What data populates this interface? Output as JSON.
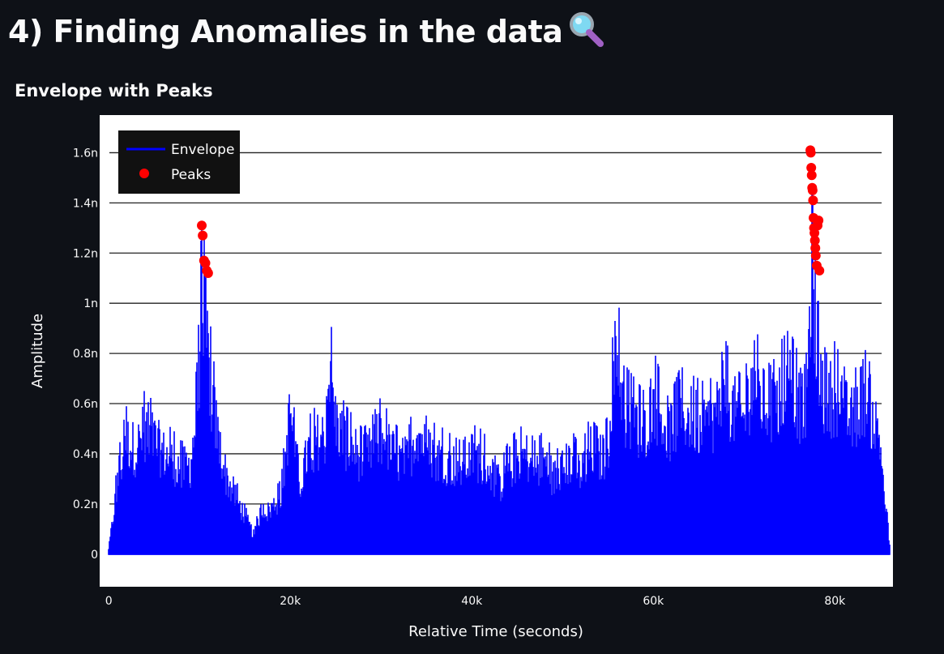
{
  "page": {
    "title": "4) Finding Anomalies in the data",
    "title_icon": "magnifying-glass-icon"
  },
  "chart_data": {
    "type": "line",
    "title": "Envelope with Peaks",
    "xlabel": "Relative Time (seconds)",
    "ylabel": "Amplitude",
    "xlim": [
      -1000,
      86400
    ],
    "ylim": [
      -1.3e-10,
      1.75e-09
    ],
    "x_ticks": [
      0,
      20000,
      40000,
      60000,
      80000
    ],
    "x_tick_labels": [
      "0",
      "20k",
      "40k",
      "60k",
      "80k"
    ],
    "y_ticks": [
      0,
      2e-10,
      4e-10,
      6e-10,
      8e-10,
      1e-09,
      1.2e-09,
      1.4e-09,
      1.6e-09
    ],
    "y_tick_labels": [
      "0",
      "0.2n",
      "0.4n",
      "0.6n",
      "0.8n",
      "1n",
      "1.2n",
      "1.4n",
      "1.6n"
    ],
    "grid": "horizontal",
    "legend_position": "top-left",
    "colors": {
      "envelope": "#0000ff",
      "peaks": "#ff0000",
      "plot_bg": "#ffffff",
      "page_bg": "#0e1117",
      "legend_bg": "#111111"
    },
    "series": [
      {
        "name": "Envelope",
        "kind": "line",
        "note": "approximate upper envelope (max amplitude) read from the plot; signal densely oscillates between 0 and this upper bound",
        "x": [
          0,
          500,
          1000,
          1500,
          2000,
          3000,
          4000,
          5000,
          6000,
          7000,
          8000,
          9000,
          9800,
          10200,
          10500,
          11000,
          11500,
          12000,
          13000,
          14000,
          15000,
          16000,
          17000,
          17500,
          18000,
          19000,
          20000,
          21000,
          22000,
          23000,
          24000,
          24500,
          25000,
          26000,
          27000,
          28000,
          29000,
          30000,
          31000,
          32000,
          33000,
          34000,
          35000,
          36000,
          37000,
          38000,
          39000,
          40000,
          41000,
          42000,
          43000,
          44000,
          45000,
          46000,
          47000,
          48000,
          49000,
          50000,
          51000,
          52000,
          53000,
          54000,
          55000,
          55500,
          56000,
          57000,
          58000,
          59000,
          60000,
          61000,
          62000,
          63000,
          64000,
          65000,
          66000,
          67000,
          68000,
          69000,
          70000,
          71000,
          72000,
          73000,
          74000,
          75000,
          76000,
          76800,
          77200,
          77500,
          77800,
          78200,
          79000,
          80000,
          81000,
          82000,
          83000,
          84000,
          85000,
          85500,
          86000
        ],
        "y": [
          3e-11,
          2e-10,
          4e-10,
          5e-10,
          6e-10,
          5.5e-10,
          6.6e-10,
          6e-10,
          5.3e-10,
          5e-10,
          4.5e-10,
          4.7e-10,
          8e-10,
          1.3e-09,
          1.27e-09,
          1e-09,
          8e-10,
          6.2e-10,
          4e-10,
          3e-10,
          2e-10,
          1e-10,
          2.6e-10,
          2.2e-10,
          2.5e-10,
          3e-10,
          7.6e-10,
          3.5e-10,
          5.5e-10,
          6e-10,
          6.3e-10,
          9.2e-10,
          7e-10,
          6e-10,
          5.5e-10,
          5e-10,
          5.5e-10,
          6.3e-10,
          5.5e-10,
          5e-10,
          5e-10,
          6.7e-10,
          5.5e-10,
          5.2e-10,
          5e-10,
          4.7e-10,
          4.5e-10,
          5.2e-10,
          5e-10,
          4.5e-10,
          3.5e-10,
          4.5e-10,
          5e-10,
          5.2e-10,
          4.5e-10,
          5e-10,
          4e-10,
          4.5e-10,
          5e-10,
          4.2e-10,
          5.5e-10,
          5e-10,
          5.5e-10,
          9.4e-10,
          1.05e-09,
          7.5e-10,
          7e-10,
          6.5e-10,
          8.2e-10,
          7e-10,
          6.5e-10,
          7.5e-10,
          7.2e-10,
          7e-10,
          6.8e-10,
          7.5e-10,
          8.5e-10,
          7.5e-10,
          7e-10,
          9.5e-10,
          8e-10,
          7.5e-10,
          8.5e-10,
          9e-10,
          8e-10,
          7.5e-10,
          1.2e-09,
          1.6e-09,
          1.3e-09,
          1e-09,
          8e-10,
          8.5e-10,
          7.5e-10,
          7e-10,
          8.5e-10,
          7.5e-10,
          6e-10,
          3e-10,
          6e-11
        ]
      },
      {
        "name": "Peaks",
        "kind": "scatter",
        "x": [
          10250,
          10350,
          10500,
          10650,
          10800,
          10950,
          77300,
          77350,
          77400,
          77450,
          77500,
          77550,
          77600,
          77650,
          77700,
          77750,
          77800,
          77850,
          77900,
          78000,
          78100,
          78200,
          78300
        ],
        "y": [
          1.31e-09,
          1.27e-09,
          1.17e-09,
          1.16e-09,
          1.13e-09,
          1.12e-09,
          1.61e-09,
          1.6e-09,
          1.54e-09,
          1.51e-09,
          1.46e-09,
          1.45e-09,
          1.41e-09,
          1.34e-09,
          1.3e-09,
          1.28e-09,
          1.25e-09,
          1.22e-09,
          1.19e-09,
          1.15e-09,
          1.31e-09,
          1.33e-09,
          1.13e-09
        ]
      }
    ]
  }
}
